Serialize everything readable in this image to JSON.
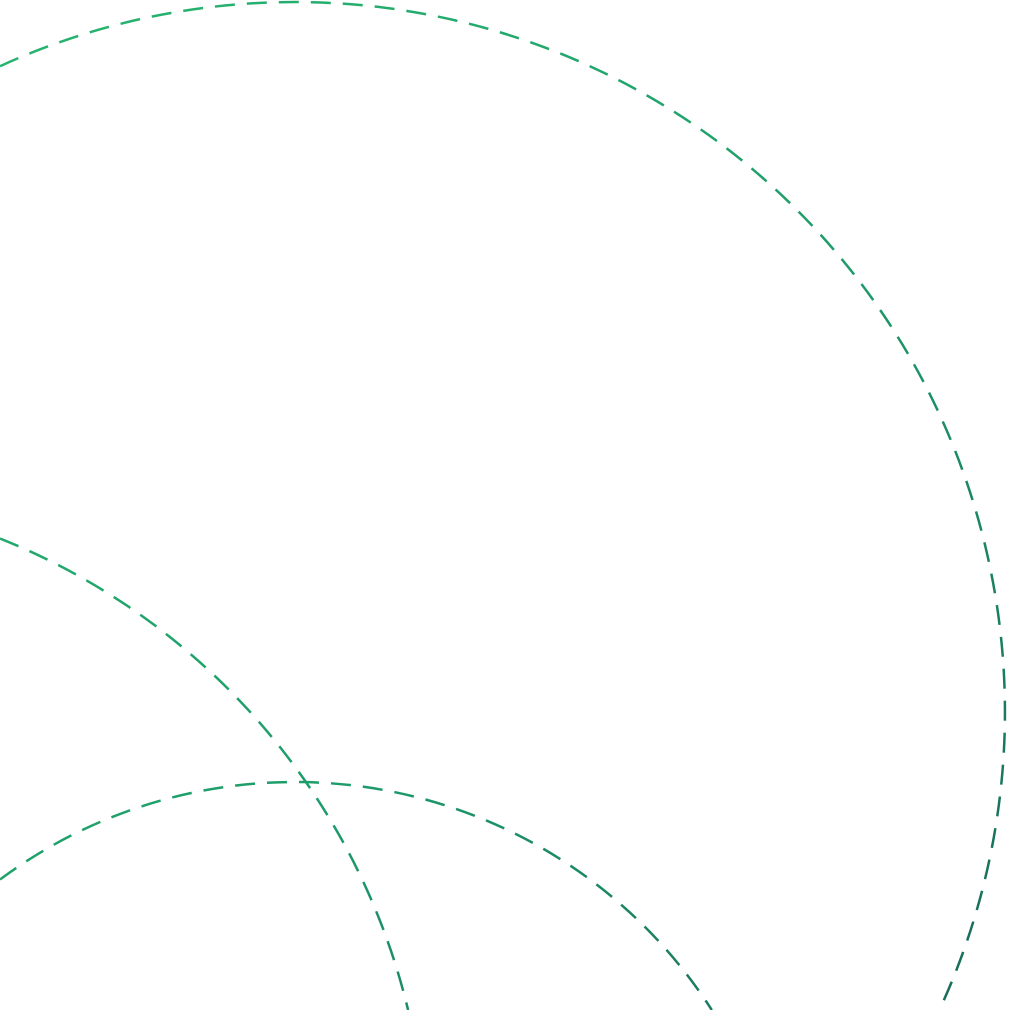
{
  "colors": {
    "light_green": "#27b56f",
    "mid_green": "#1e9c6a",
    "dark_green": "#17695a",
    "background": "#ffffff"
  },
  "shapes": [
    {
      "name": "large-dashed-circle"
    },
    {
      "name": "left-dashed-circle"
    },
    {
      "name": "bottom-dashed-circle"
    }
  ]
}
